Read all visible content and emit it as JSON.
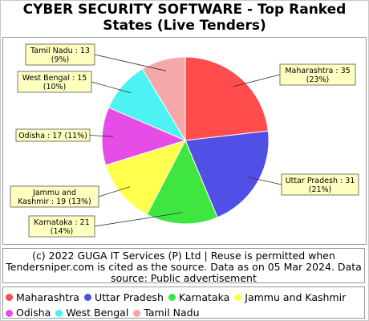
{
  "chart_data": {
    "type": "pie",
    "title": "CYBER SECURITY SOFTWARE - Top Ranked States (Live Tenders)",
    "slices": [
      {
        "name": "Maharashtra",
        "value": 35,
        "percent": "23%",
        "color": "#ff4d4d",
        "label_line1": "Maharashtra : 35",
        "label_line2": "(23%)"
      },
      {
        "name": "Uttar Pradesh",
        "value": 31,
        "percent": "21%",
        "color": "#5050e6",
        "label_line1": "Uttar Pradesh : 31",
        "label_line2": "(21%)"
      },
      {
        "name": "Karnataka",
        "value": 21,
        "percent": "14%",
        "color": "#3fe63f",
        "label_line1": "Karnataka : 21",
        "label_line2": "(14%)"
      },
      {
        "name": "Jammu and Kashmir",
        "value": 19,
        "percent": "13%",
        "color": "#ffff4d",
        "label_line1": "Jammu and",
        "label_line2": "Kashmir : 19 (13%)"
      },
      {
        "name": "Odisha",
        "value": 17,
        "percent": "11%",
        "color": "#e64de6",
        "label_line1": "Odisha : 17 (11%)",
        "label_line2": ""
      },
      {
        "name": "West Bengal",
        "value": 15,
        "percent": "10%",
        "color": "#4df2f2",
        "label_line1": "West Bengal : 15",
        "label_line2": "(10%)"
      },
      {
        "name": "Tamil Nadu",
        "value": 13,
        "percent": "9%",
        "color": "#f4a8a8",
        "label_line1": "Tamil Nadu : 13",
        "label_line2": "(9%)"
      }
    ],
    "legend_position": "bottom"
  },
  "title_line1": "CYBER SECURITY SOFTWARE - Top Ranked",
  "title_line2": "States (Live Tenders)",
  "source_line1": "(c) 2022 GUGA IT Services (P) Ltd | Reuse is permitted when",
  "source_line2": "Tendersniper.com is cited as the source. Data as on 05 Mar 2024. Data",
  "source_line3": "source: Public advertisement",
  "label_box_color": "#ffffc0"
}
